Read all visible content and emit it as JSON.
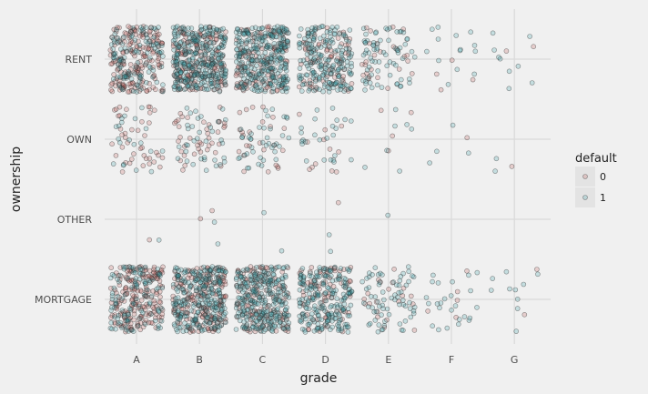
{
  "chart_data": {
    "type": "scatter",
    "style": "jitter",
    "background": "#f0f0f0",
    "grid": true,
    "x": [
      "A",
      "B",
      "C",
      "D",
      "E",
      "F",
      "G"
    ],
    "y": [
      "MORTGAGE",
      "OTHER",
      "OWN",
      "RENT"
    ],
    "xlabel": "grade",
    "ylabel": "ownership",
    "legend": {
      "title": "default",
      "placement": "right",
      "entries": [
        "0",
        "1"
      ]
    },
    "colors": {
      "0": "#c0504d",
      "1": "#2a9ca4"
    },
    "series": [
      {
        "name": "0",
        "counts": {
          "RENT": [
            180,
            160,
            110,
            70,
            25,
            4,
            2
          ],
          "OWN": [
            40,
            40,
            25,
            12,
            4,
            1,
            1
          ],
          "OTHER": [
            1,
            2,
            0,
            1,
            0,
            0,
            0
          ],
          "MORTGAGE": [
            190,
            180,
            120,
            70,
            20,
            5,
            2
          ]
        }
      },
      {
        "name": "1",
        "counts": {
          "RENT": [
            110,
            300,
            300,
            200,
            70,
            14,
            9
          ],
          "OWN": [
            20,
            35,
            40,
            25,
            7,
            4,
            2
          ],
          "OTHER": [
            1,
            2,
            2,
            2,
            1,
            0,
            0
          ],
          "MORTGAGE": [
            110,
            250,
            280,
            220,
            70,
            25,
            10
          ]
        }
      }
    ]
  }
}
